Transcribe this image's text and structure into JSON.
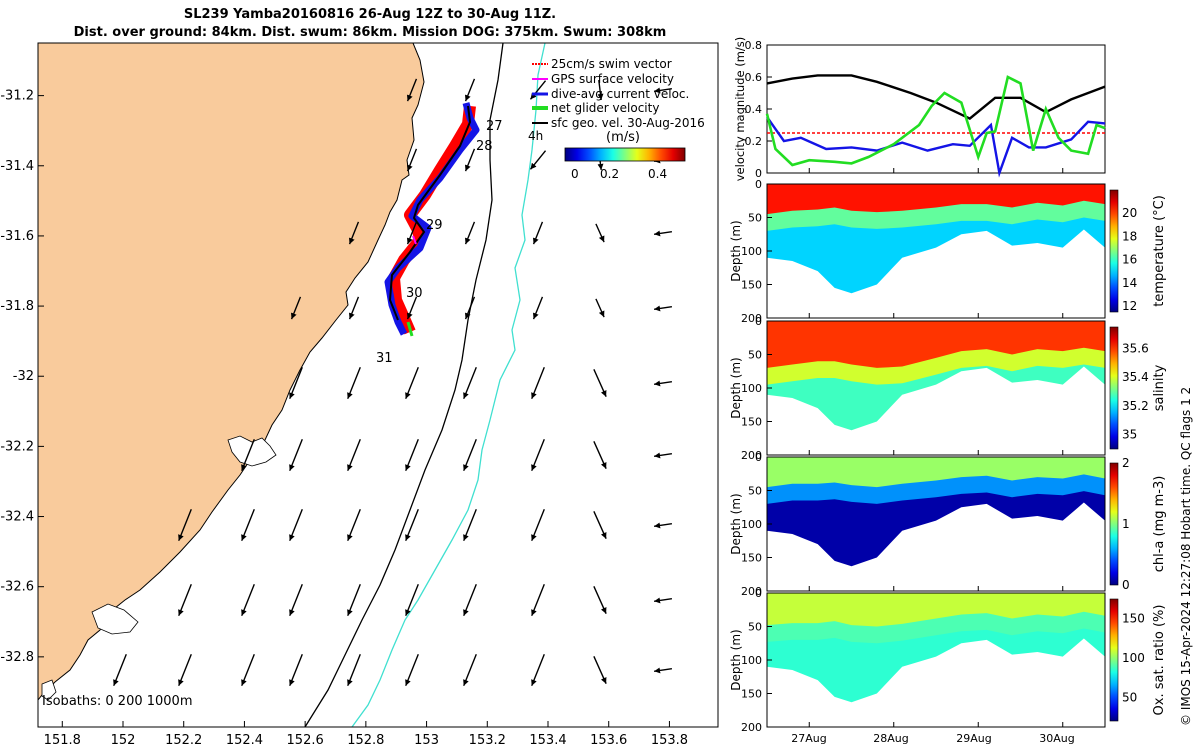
{
  "header": {
    "title": "SL239 Yamba20160816 26-Aug 12Z to 30-Aug 11Z.",
    "subtitle": "Dist. over ground: 84km. Dist. swum: 86km. Mission DOG: 375km. Swum: 308km"
  },
  "credit": "© IMOS 15-Apr-2024 12:27:08 Hobart time. QC flags 1  2",
  "colors": {
    "land": "#f9cb9c",
    "track_red": "#ff0000",
    "track_blue": "#1414e6",
    "green": "#22dd22",
    "isobath_cyan": "#40e0d0",
    "black": "#000000"
  },
  "chart_data": [
    {
      "type": "map",
      "title": "Glider track and velocities",
      "x_ticks": [
        "151.8",
        "152",
        "152.2",
        "152.4",
        "152.6",
        "152.8",
        "153",
        "153.2",
        "153.4",
        "153.6",
        "153.8"
      ],
      "y_ticks": [
        "-31.2",
        "-31.4",
        "-31.6",
        "-31.8",
        "-32",
        "-32.2",
        "-32.4",
        "-32.6",
        "-32.8"
      ],
      "xlim": [
        151.72,
        153.96
      ],
      "ylim": [
        -33.0,
        -31.05
      ],
      "legend": [
        {
          "label": "25cm/s swim vector",
          "color": "#ff0000"
        },
        {
          "label": "GPS surface velocity",
          "color": "#ff00ff"
        },
        {
          "label": "dive-avg current veloc.",
          "color": "#1414e6"
        },
        {
          "label": "net glider velocity",
          "color": "#22dd22"
        },
        {
          "label": "sfc geo. vel. 30-Aug-2016",
          "color": "#000000"
        }
      ],
      "colorbar_label": "(m/s)",
      "colorbar_ticks": [
        "0",
        "0.2",
        "0.4"
      ],
      "arrow_note": "4h",
      "day_labels": [
        {
          "text": "27",
          "lon": 153.14,
          "lat": -31.36
        },
        {
          "text": "28",
          "lon": 153.12,
          "lat": -31.44
        },
        {
          "text": "29",
          "lon": 153.0,
          "lat": -31.62
        },
        {
          "text": "30",
          "lon": 152.98,
          "lat": -31.82
        },
        {
          "text": "31",
          "lon": 152.91,
          "lat": -31.94
        }
      ],
      "isobath_note": "Isobaths: 0   200  1000m"
    },
    {
      "type": "line",
      "ylabel": "velocity magnitude (m/s)",
      "ylim": [
        0,
        0.8
      ],
      "y_ticks": [
        "0",
        "0.2",
        "0.4",
        "0.6",
        "0.8"
      ],
      "x_days": [
        0,
        4
      ],
      "series": [
        {
          "name": "surface geostrophic speed",
          "color": "#000000",
          "x": [
            0,
            0.3,
            0.6,
            1.0,
            1.3,
            1.7,
            2.0,
            2.4,
            2.7,
            3.0,
            3.3,
            3.6,
            4.0
          ],
          "values": [
            0.56,
            0.59,
            0.61,
            0.61,
            0.57,
            0.5,
            0.44,
            0.34,
            0.47,
            0.47,
            0.38,
            0.46,
            0.54
          ]
        },
        {
          "name": "swim speed",
          "color": "#ff0000",
          "x": [
            0,
            4
          ],
          "values": [
            0.25,
            0.25
          ]
        },
        {
          "name": "dive-avg current",
          "color": "#1414e6",
          "x": [
            0,
            0.2,
            0.4,
            0.7,
            1.0,
            1.3,
            1.6,
            1.9,
            2.2,
            2.4,
            2.65,
            2.75,
            2.9,
            3.1,
            3.3,
            3.6,
            3.8,
            4.0
          ],
          "values": [
            0.35,
            0.2,
            0.22,
            0.15,
            0.16,
            0.14,
            0.19,
            0.14,
            0.18,
            0.17,
            0.3,
            0.0,
            0.22,
            0.16,
            0.16,
            0.21,
            0.32,
            0.31
          ]
        },
        {
          "name": "net glider velocity",
          "color": "#22dd22",
          "x": [
            0,
            0.1,
            0.3,
            0.5,
            0.8,
            1.0,
            1.2,
            1.5,
            1.8,
            1.95,
            2.1,
            2.3,
            2.5,
            2.6,
            2.7,
            2.85,
            3.0,
            3.15,
            3.3,
            3.45,
            3.6,
            3.8,
            3.9,
            4.0
          ],
          "values": [
            0.37,
            0.15,
            0.05,
            0.08,
            0.07,
            0.06,
            0.1,
            0.18,
            0.3,
            0.42,
            0.5,
            0.44,
            0.1,
            0.25,
            0.26,
            0.6,
            0.56,
            0.14,
            0.4,
            0.22,
            0.14,
            0.12,
            0.3,
            0.28
          ]
        }
      ]
    },
    {
      "type": "heatmap",
      "name": "temperature",
      "ylabel": "Depth (m)",
      "ylim": [
        0,
        200
      ],
      "y_ticks": [
        "0",
        "50",
        "100",
        "150",
        "200"
      ],
      "colorbar_label": "temperature (°C)",
      "clim": [
        11.5,
        22
      ],
      "colorbar_ticks": [
        "12",
        "14",
        "16",
        "18",
        "20"
      ],
      "x": [
        0,
        0.3,
        0.6,
        0.8,
        1.0,
        1.3,
        1.6,
        2.0,
        2.3,
        2.6,
        2.9,
        3.2,
        3.5,
        3.75,
        4.0
      ],
      "bottom_depth": [
        110,
        115,
        130,
        155,
        163,
        150,
        110,
        95,
        75,
        70,
        92,
        88,
        95,
        68,
        95
      ],
      "mixed_depth": [
        45,
        40,
        38,
        35,
        40,
        42,
        40,
        35,
        30,
        30,
        35,
        28,
        32,
        25,
        30
      ],
      "surface_value": 20.5,
      "lower_value": 16.5,
      "deep_value": 15.0
    },
    {
      "type": "heatmap",
      "name": "salinity",
      "ylabel": "Depth (m)",
      "ylim": [
        0,
        200
      ],
      "y_ticks": [
        "0",
        "50",
        "100",
        "150",
        "200"
      ],
      "colorbar_label": "salinity",
      "clim": [
        34.9,
        35.75
      ],
      "colorbar_ticks": [
        "35",
        "35.2",
        "35.4",
        "35.6"
      ],
      "x": [
        0,
        0.3,
        0.6,
        0.8,
        1.0,
        1.3,
        1.6,
        2.0,
        2.3,
        2.6,
        2.9,
        3.2,
        3.5,
        3.75,
        4.0
      ],
      "bottom_depth": [
        110,
        115,
        130,
        155,
        163,
        150,
        110,
        95,
        75,
        70,
        92,
        88,
        95,
        68,
        95
      ],
      "mixed_depth": [
        70,
        65,
        60,
        60,
        65,
        70,
        68,
        55,
        45,
        42,
        50,
        42,
        45,
        40,
        45
      ],
      "surface_value": 35.6,
      "lower_value": 35.4,
      "deep_value": 35.27
    },
    {
      "type": "heatmap",
      "name": "chl-a",
      "ylabel": "Depth (m)",
      "ylim": [
        0,
        200
      ],
      "y_ticks": [
        "0",
        "50",
        "100",
        "150",
        "200"
      ],
      "colorbar_label": "chl-a (mg m-3)",
      "clim": [
        0,
        2
      ],
      "colorbar_ticks": [
        "0",
        "1",
        "2"
      ],
      "x": [
        0,
        0.3,
        0.6,
        0.8,
        1.0,
        1.3,
        1.6,
        2.0,
        2.3,
        2.6,
        2.9,
        3.2,
        3.5,
        3.75,
        4.0
      ],
      "bottom_depth": [
        110,
        115,
        130,
        155,
        163,
        150,
        110,
        95,
        75,
        70,
        92,
        88,
        95,
        68,
        95
      ],
      "mixed_depth": [
        45,
        40,
        40,
        38,
        42,
        45,
        40,
        35,
        30,
        28,
        35,
        30,
        32,
        26,
        32
      ],
      "surface_value": 1.05,
      "lower_value": 0.55,
      "deep_value": 0.08
    },
    {
      "type": "heatmap",
      "name": "oxygen saturation",
      "ylabel": "Depth (m)",
      "ylim": [
        0,
        200
      ],
      "y_ticks": [
        "0",
        "50",
        "100",
        "150",
        "200"
      ],
      "colorbar_label": "Ox. sat. ratio (%)",
      "clim": [
        20,
        175
      ],
      "colorbar_ticks": [
        "50",
        "100",
        "150"
      ],
      "x": [
        0,
        0.3,
        0.6,
        0.8,
        1.0,
        1.3,
        1.6,
        2.0,
        2.3,
        2.6,
        2.9,
        3.2,
        3.5,
        3.75,
        4.0
      ],
      "bottom_depth": [
        110,
        115,
        130,
        155,
        163,
        150,
        110,
        95,
        75,
        70,
        92,
        88,
        95,
        68,
        95
      ],
      "mixed_depth": [
        48,
        45,
        45,
        42,
        48,
        50,
        46,
        38,
        32,
        30,
        38,
        32,
        35,
        28,
        34
      ],
      "surface_value": 108,
      "lower_value": 90,
      "deep_value": 85
    },
    {
      "type": "axis",
      "x_ticks": [
        "27Aug",
        "28Aug",
        "29Aug",
        "30Aug"
      ],
      "tick_days": [
        0.5,
        1.5,
        2.5,
        3.5
      ]
    }
  ]
}
